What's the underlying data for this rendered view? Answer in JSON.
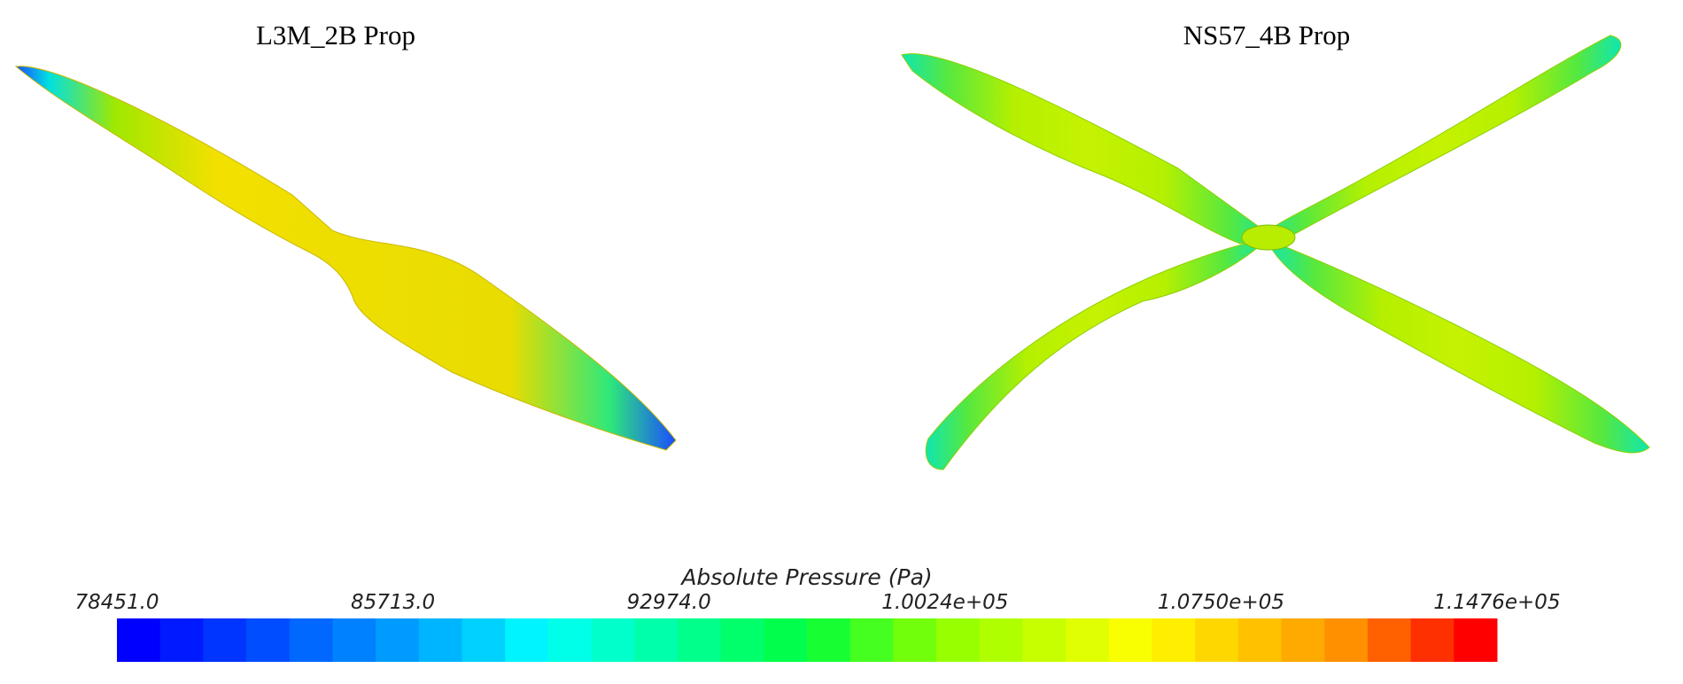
{
  "panels": [
    {
      "title": "L3M_2B Prop"
    },
    {
      "title": "NS57_4B Prop"
    }
  ],
  "colorbar": {
    "title": "Absolute Pressure (Pa)",
    "ticks": [
      "78451.0",
      "85713.0",
      "92974.0",
      "1.0024e+05",
      "1.0750e+05",
      "1.1476e+05"
    ]
  }
}
